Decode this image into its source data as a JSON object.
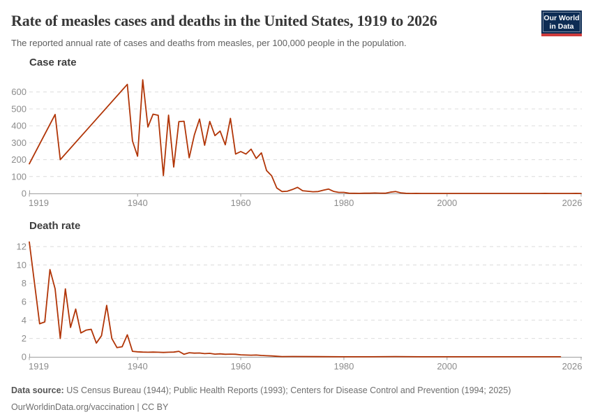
{
  "header": {
    "title": "Rate of measles cases and deaths in the United States, 1919 to 2026",
    "subtitle": "The reported annual rate of cases and deaths from measles, per 100,000 people in the population.",
    "logo": {
      "line1": "Our World",
      "line2": "in Data"
    }
  },
  "colors": {
    "series_line": "#b13507",
    "grid": "#dcdcdc",
    "axis": "#9e9e9e",
    "tick_label": "#8c8c8c",
    "chart_heading": "#3d3d3d",
    "title_text": "#373737",
    "subtitle_text": "#5f5f5f",
    "footer_text": "#6e6e6e",
    "logo_bg": "#0d2c54",
    "logo_bar": "#cf3b3b"
  },
  "chart_data": [
    {
      "type": "line",
      "title": "Case rate",
      "units": "cases per 100,000 people",
      "xlim": [
        1919,
        2026
      ],
      "ylim": [
        0,
        690
      ],
      "xticks": [
        1919,
        1940,
        1960,
        1980,
        2000,
        2026
      ],
      "yticks": [
        0,
        100,
        200,
        300,
        400,
        500,
        600
      ],
      "grid": true,
      "color": "#b13507",
      "points": [
        [
          1919,
          175
        ],
        [
          1924,
          467
        ],
        [
          1925,
          200
        ],
        [
          1938,
          645
        ],
        [
          1939,
          310
        ],
        [
          1940,
          220
        ],
        [
          1941,
          672
        ],
        [
          1942,
          393
        ],
        [
          1943,
          469
        ],
        [
          1944,
          462
        ],
        [
          1945,
          106
        ],
        [
          1946,
          463
        ],
        [
          1947,
          156
        ],
        [
          1948,
          425
        ],
        [
          1949,
          427
        ],
        [
          1950,
          211
        ],
        [
          1951,
          346
        ],
        [
          1952,
          440
        ],
        [
          1953,
          285
        ],
        [
          1954,
          426
        ],
        [
          1955,
          342
        ],
        [
          1956,
          369
        ],
        [
          1957,
          288
        ],
        [
          1958,
          444
        ],
        [
          1959,
          233
        ],
        [
          1960,
          248
        ],
        [
          1961,
          233
        ],
        [
          1962,
          262
        ],
        [
          1963,
          207
        ],
        [
          1964,
          240
        ],
        [
          1965,
          135
        ],
        [
          1966,
          104
        ],
        [
          1967,
          32
        ],
        [
          1968,
          11
        ],
        [
          1969,
          13
        ],
        [
          1970,
          23
        ],
        [
          1971,
          36
        ],
        [
          1972,
          16
        ],
        [
          1973,
          13
        ],
        [
          1974,
          10
        ],
        [
          1975,
          11
        ],
        [
          1976,
          19
        ],
        [
          1977,
          26
        ],
        [
          1978,
          12
        ],
        [
          1979,
          6
        ],
        [
          1980,
          6
        ],
        [
          1981,
          1.4
        ],
        [
          1982,
          0.7
        ],
        [
          1983,
          0.6
        ],
        [
          1984,
          1.1
        ],
        [
          1985,
          1.2
        ],
        [
          1986,
          2.6
        ],
        [
          1987,
          1.5
        ],
        [
          1988,
          1.4
        ],
        [
          1989,
          7.3
        ],
        [
          1990,
          11.2
        ],
        [
          1991,
          3.8
        ],
        [
          1992,
          0.9
        ],
        [
          1993,
          0.1
        ],
        [
          1994,
          0.4
        ],
        [
          1995,
          0.1
        ],
        [
          1996,
          0.2
        ],
        [
          1997,
          0.1
        ],
        [
          1998,
          0.1
        ],
        [
          2000,
          0.1
        ],
        [
          2002,
          0.1
        ],
        [
          2004,
          0.1
        ],
        [
          2006,
          0.1
        ],
        [
          2008,
          0.1
        ],
        [
          2010,
          0.1
        ],
        [
          2012,
          0.1
        ],
        [
          2014,
          0.2
        ],
        [
          2015,
          0.1
        ],
        [
          2016,
          0.1
        ],
        [
          2017,
          0.1
        ],
        [
          2018,
          0.1
        ],
        [
          2019,
          0.4
        ],
        [
          2020,
          0.1
        ],
        [
          2021,
          0.1
        ],
        [
          2022,
          0.1
        ],
        [
          2023,
          0.1
        ],
        [
          2024,
          0.1
        ],
        [
          2025,
          0.4
        ],
        [
          2026,
          0.2
        ]
      ]
    },
    {
      "type": "line",
      "title": "Death rate",
      "units": "deaths per 100,000 people",
      "xlim": [
        1919,
        2026
      ],
      "ylim": [
        0,
        13.6
      ],
      "xticks": [
        1919,
        1940,
        1960,
        1980,
        2000,
        2026
      ],
      "yticks": [
        0,
        2,
        4,
        6,
        8,
        10,
        12
      ],
      "grid": true,
      "color": "#b13507",
      "points": [
        [
          1919,
          12.5
        ],
        [
          1921,
          3.6
        ],
        [
          1922,
          3.8
        ],
        [
          1923,
          9.5
        ],
        [
          1924,
          7.4
        ],
        [
          1925,
          2.0
        ],
        [
          1926,
          7.4
        ],
        [
          1927,
          3.2
        ],
        [
          1928,
          5.2
        ],
        [
          1929,
          2.6
        ],
        [
          1930,
          2.9
        ],
        [
          1931,
          3.0
        ],
        [
          1932,
          1.5
        ],
        [
          1933,
          2.3
        ],
        [
          1934,
          5.6
        ],
        [
          1935,
          2.0
        ],
        [
          1936,
          1.0
        ],
        [
          1937,
          1.1
        ],
        [
          1938,
          2.4
        ],
        [
          1939,
          0.6
        ],
        [
          1940,
          0.55
        ],
        [
          1941,
          0.52
        ],
        [
          1942,
          0.5
        ],
        [
          1943,
          0.52
        ],
        [
          1944,
          0.5
        ],
        [
          1945,
          0.48
        ],
        [
          1946,
          0.5
        ],
        [
          1947,
          0.52
        ],
        [
          1948,
          0.6
        ],
        [
          1949,
          0.28
        ],
        [
          1950,
          0.45
        ],
        [
          1951,
          0.4
        ],
        [
          1952,
          0.42
        ],
        [
          1953,
          0.35
        ],
        [
          1954,
          0.38
        ],
        [
          1955,
          0.3
        ],
        [
          1956,
          0.33
        ],
        [
          1957,
          0.28
        ],
        [
          1958,
          0.3
        ],
        [
          1959,
          0.28
        ],
        [
          1960,
          0.22
        ],
        [
          1961,
          0.2
        ],
        [
          1962,
          0.18
        ],
        [
          1963,
          0.2
        ],
        [
          1964,
          0.15
        ],
        [
          1965,
          0.12
        ],
        [
          1966,
          0.1
        ],
        [
          1967,
          0.06
        ],
        [
          1968,
          0.03
        ],
        [
          1970,
          0.04
        ],
        [
          1975,
          0.02
        ],
        [
          1980,
          0.01
        ],
        [
          1985,
          0.01
        ],
        [
          1990,
          0.03
        ],
        [
          1995,
          0.01
        ],
        [
          2000,
          0.01
        ],
        [
          2005,
          0.01
        ],
        [
          2010,
          0.01
        ],
        [
          2015,
          0.01
        ],
        [
          2020,
          0.01
        ],
        [
          2022,
          0.01
        ]
      ]
    }
  ],
  "footer": {
    "source_label": "Data source:",
    "source_text": " US Census Bureau (1944); Public Health Reports (1993); Centers for Disease Control and Prevention (1994; 2025)",
    "link_text": "OurWorldinData.org/vaccination",
    "license_suffix": " | CC BY"
  }
}
